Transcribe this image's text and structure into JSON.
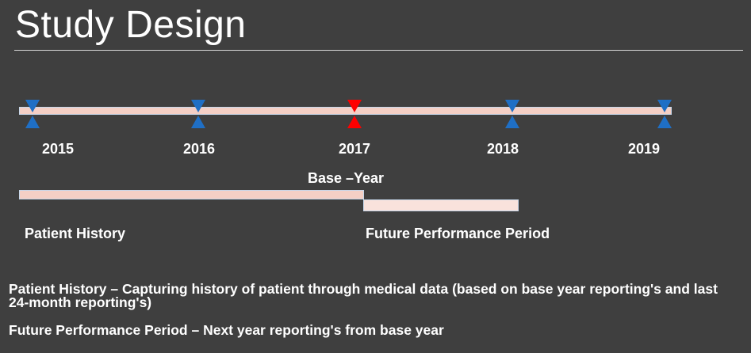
{
  "slide": {
    "title": "Study Design"
  },
  "timeline": {
    "years": [
      "2015",
      "2016",
      "2017",
      "2018",
      "2019"
    ],
    "base_year_index": 2,
    "marker_color_default": "#1f6fc5",
    "marker_color_base": "#ff0000",
    "bar_fill": "#f4cfc5",
    "base_year_label": "Base –Year"
  },
  "periods": {
    "history_label": "Patient History",
    "future_label": "Future Performance Period"
  },
  "notes": {
    "history": "Patient History – Capturing history of patient through medical data (based on base year reporting's and last 24-month reporting's)",
    "future": "Future Performance Period –   Next year reporting's from base year"
  }
}
